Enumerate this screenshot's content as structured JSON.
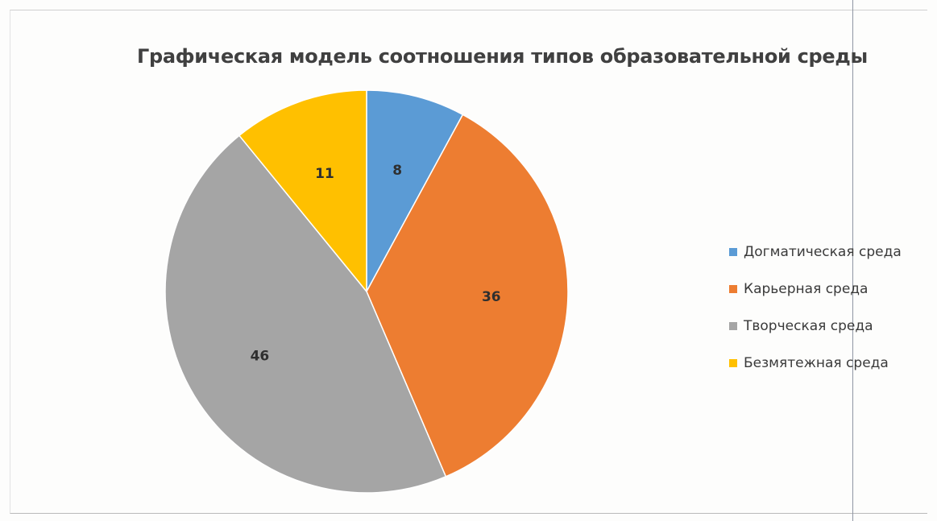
{
  "chart_data": {
    "type": "pie",
    "title": "Графическая модель соотношения типов образовательной среды",
    "categories": [
      "Догматическая среда",
      "Карьерная среда",
      "Творческая среда",
      "Безмятежная среда"
    ],
    "values": [
      8,
      36,
      46,
      11
    ],
    "data_labels": [
      "8",
      "36",
      "46",
      "11"
    ],
    "colors": [
      "#5b9bd5",
      "#ed7d31",
      "#a5a5a5",
      "#ffc000"
    ],
    "legend_position": "right",
    "start_angle": "12 o'clock, clockwise"
  }
}
